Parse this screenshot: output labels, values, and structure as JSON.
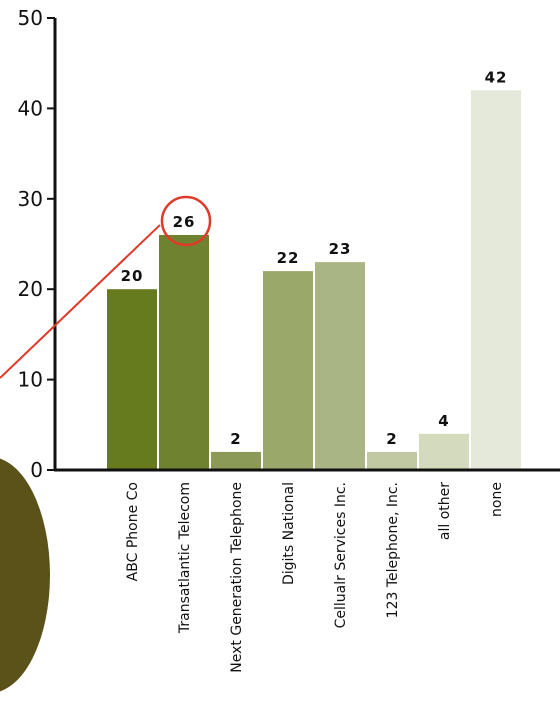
{
  "chart_data": {
    "type": "bar",
    "categories": [
      "ABC Phone Co",
      "Transatlantic Telecom",
      "Next Generation Telephone",
      "Digits National",
      "Cellualr Services Inc.",
      "123 Telephone, Inc.",
      "all other",
      "none"
    ],
    "values": [
      20,
      26,
      2,
      22,
      23,
      2,
      4,
      42
    ],
    "data_labels": [
      "20",
      "26",
      "2",
      "22",
      "23",
      "2",
      "4",
      "42"
    ],
    "ylim": [
      0,
      50
    ],
    "yticks": [
      0,
      10,
      20,
      30,
      40,
      50
    ],
    "ytick_labels": [
      "0",
      "10",
      "20",
      "30",
      "40",
      "50"
    ],
    "highlighted_category": "Transatlantic Telecom",
    "colors": {
      "bars": [
        "#667a1e",
        "#6f8230",
        "#8b9b57",
        "#9aa86a",
        "#a9b584",
        "#c0c9a1",
        "#d4dbbd",
        "#e5e9da"
      ],
      "axis": "#111111",
      "callout": "#e03a2a",
      "blob": "#5a5218"
    }
  }
}
